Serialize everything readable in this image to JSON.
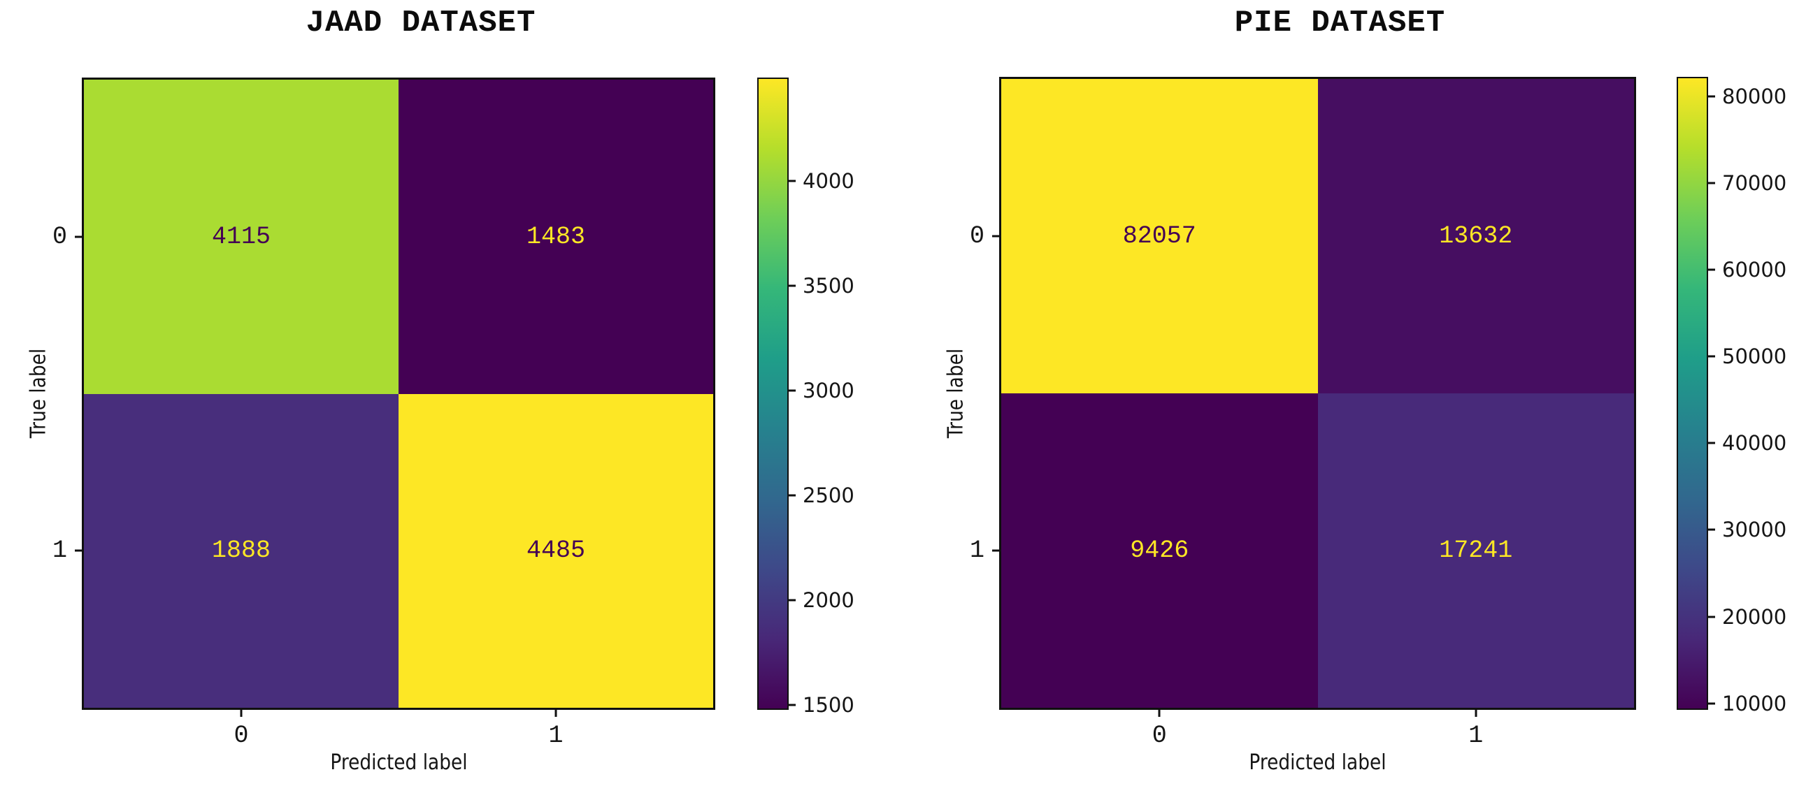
{
  "chart_data": [
    {
      "type": "heatmap",
      "title": "JAAD DATASET",
      "xlabel": "Predicted label",
      "ylabel": "True label",
      "x_categories": [
        "0",
        "1"
      ],
      "y_categories": [
        "0",
        "1"
      ],
      "matrix": [
        [
          4115,
          1483
        ],
        [
          1888,
          4485
        ]
      ],
      "vmin": 1483,
      "vmax": 4485,
      "colorbar_ticks": [
        1500,
        2000,
        2500,
        3000,
        3500,
        4000
      ],
      "colormap": "viridis",
      "colorbar_position": "right",
      "cell_colors": [
        [
          "#aadc32",
          "#440154"
        ],
        [
          "#482e7c",
          "#fde725"
        ]
      ],
      "cell_text_colors": [
        [
          "#440154",
          "#fde725"
        ],
        [
          "#fde725",
          "#440154"
        ]
      ]
    },
    {
      "type": "heatmap",
      "title": "PIE DATASET",
      "xlabel": "Predicted label",
      "ylabel": "True label",
      "x_categories": [
        "0",
        "1"
      ],
      "y_categories": [
        "0",
        "1"
      ],
      "matrix": [
        [
          82057,
          13632
        ],
        [
          9426,
          17241
        ]
      ],
      "vmin": 9426,
      "vmax": 82057,
      "colorbar_ticks": [
        10000,
        20000,
        30000,
        40000,
        50000,
        60000,
        70000,
        80000
      ],
      "colormap": "viridis",
      "colorbar_position": "right",
      "cell_colors": [
        [
          "#fde725",
          "#460e61"
        ],
        [
          "#440154",
          "#482a7a"
        ]
      ],
      "cell_text_colors": [
        [
          "#440154",
          "#fde725"
        ],
        [
          "#fde725",
          "#fde725"
        ]
      ]
    }
  ],
  "colors": {
    "background": "#ffffff",
    "text": "#111111",
    "spine": "#101010",
    "annotation_dark": "#440154",
    "annotation_light": "#fde725"
  },
  "viridis_stops": [
    "#440154",
    "#482878",
    "#3e4989",
    "#31688e",
    "#26828e",
    "#1f9e89",
    "#35b779",
    "#6ece58",
    "#b5de2b",
    "#fde725"
  ]
}
